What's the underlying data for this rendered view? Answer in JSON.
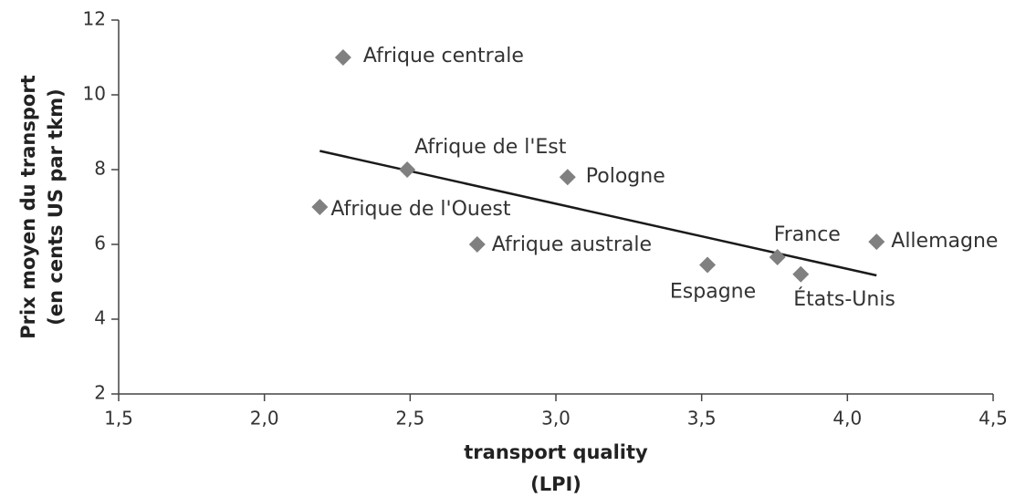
{
  "chart_data": {
    "type": "scatter",
    "xlabel": [
      "transport quality",
      "(LPI)"
    ],
    "ylabel": [
      "Prix moyen du transport",
      "(en cents US par tkm)"
    ],
    "labels": [
      "Afrique centrale",
      "Afrique de l'Est",
      "Pologne",
      "Afrique de l'Ouest",
      "Afrique australe",
      "Espagne",
      "France",
      "États-Unis",
      "Allemagne"
    ],
    "x": [
      2.27,
      2.49,
      3.04,
      2.19,
      2.73,
      3.52,
      3.76,
      3.84,
      4.1
    ],
    "values": [
      11.0,
      8.0,
      7.8,
      7.0,
      6.0,
      5.45,
      5.66,
      5.2,
      6.07
    ],
    "color": "#808080",
    "trendline": {
      "x": [
        2.19,
        4.1
      ],
      "y": [
        8.5,
        5.17
      ],
      "color": "#1a1a1a"
    },
    "xlim": [
      1.5,
      4.5
    ],
    "xticks": [
      {
        "value": 1.5,
        "label": "1,5"
      },
      {
        "value": 2.0,
        "label": "2,0"
      },
      {
        "value": 2.5,
        "label": "2,5"
      },
      {
        "value": 3.0,
        "label": "3,0"
      },
      {
        "value": 3.5,
        "label": "3,5"
      },
      {
        "value": 4.0,
        "label": "4,0"
      },
      {
        "value": 4.5,
        "label": "4,5"
      }
    ],
    "ylim": [
      2,
      12
    ],
    "yticks": [
      2,
      4,
      6,
      8,
      10,
      12
    ],
    "grid": false
  }
}
